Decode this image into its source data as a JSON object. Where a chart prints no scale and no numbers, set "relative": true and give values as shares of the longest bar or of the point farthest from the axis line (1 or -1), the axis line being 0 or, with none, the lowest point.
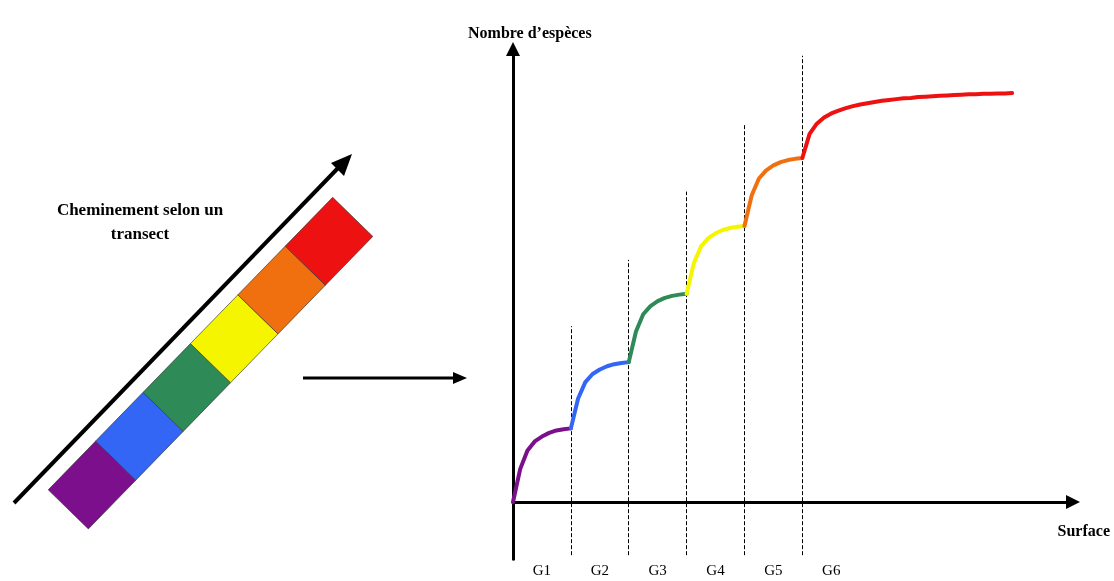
{
  "chart_data": {
    "type": "line",
    "relative": true,
    "ylabel": "Nombre d’espèces",
    "xlabel": "Surface",
    "categories": [
      null,
      null,
      null,
      null,
      "G1",
      null,
      null,
      null,
      null,
      null,
      null,
      null,
      "G2",
      null,
      null,
      null,
      null,
      null,
      null,
      null,
      "G3",
      null,
      null,
      null,
      null,
      null,
      null,
      null,
      "G4",
      null,
      null,
      null,
      null,
      null,
      null,
      null,
      "G5",
      null,
      null,
      null,
      null,
      null,
      null,
      null,
      "G6",
      null,
      null,
      null,
      null,
      null,
      null,
      null,
      null,
      null,
      null,
      null,
      null,
      null,
      null,
      null,
      null,
      null,
      null,
      null,
      null,
      null,
      null,
      null,
      null,
      null,
      null,
      null,
      null,
      null,
      null,
      null,
      null,
      null
    ],
    "marker": "none",
    "line_style": "solid",
    "annotations": [
      "Cheminement selon un transect"
    ],
    "series": [
      {
        "color": "#7b0f8c",
        "values": [
          0,
          0.081,
          0.126,
          0.148,
          0.16,
          0.169,
          0.175,
          0.178,
          0.18,
          null,
          null,
          null,
          null,
          null,
          null,
          null,
          null,
          null,
          null,
          null,
          null,
          null,
          null,
          null,
          null,
          null,
          null,
          null,
          null,
          null,
          null,
          null,
          null,
          null,
          null,
          null,
          null,
          null,
          null,
          null,
          null,
          null,
          null,
          null,
          null,
          null,
          null,
          null,
          null,
          null,
          null,
          null,
          null,
          null,
          null,
          null,
          null,
          null,
          null,
          null,
          null,
          null,
          null,
          null,
          null,
          null,
          null,
          null,
          null,
          null,
          null,
          null,
          null,
          null,
          null,
          null,
          null,
          null
        ]
      },
      {
        "color": "#3366f5",
        "values": [
          null,
          null,
          null,
          null,
          null,
          null,
          null,
          null,
          0.18,
          0.253,
          0.293,
          0.313,
          0.324,
          0.332,
          0.337,
          0.34,
          0.342,
          null,
          null,
          null,
          null,
          null,
          null,
          null,
          null,
          null,
          null,
          null,
          null,
          null,
          null,
          null,
          null,
          null,
          null,
          null,
          null,
          null,
          null,
          null,
          null,
          null,
          null,
          null,
          null,
          null,
          null,
          null,
          null,
          null,
          null,
          null,
          null,
          null,
          null,
          null,
          null,
          null,
          null,
          null,
          null,
          null,
          null,
          null,
          null,
          null,
          null,
          null,
          null,
          null,
          null,
          null,
          null,
          null,
          null,
          null,
          null,
          null
        ]
      },
      {
        "color": "#2e8b57",
        "values": [
          null,
          null,
          null,
          null,
          null,
          null,
          null,
          null,
          null,
          null,
          null,
          null,
          null,
          null,
          null,
          null,
          0.342,
          0.417,
          0.459,
          0.479,
          0.491,
          0.499,
          0.504,
          0.507,
          0.509,
          null,
          null,
          null,
          null,
          null,
          null,
          null,
          null,
          null,
          null,
          null,
          null,
          null,
          null,
          null,
          null,
          null,
          null,
          null,
          null,
          null,
          null,
          null,
          null,
          null,
          null,
          null,
          null,
          null,
          null,
          null,
          null,
          null,
          null,
          null,
          null,
          null,
          null,
          null,
          null,
          null,
          null,
          null,
          null,
          null,
          null,
          null,
          null,
          null,
          null,
          null,
          null,
          null
        ]
      },
      {
        "color": "#f5f500",
        "values": [
          null,
          null,
          null,
          null,
          null,
          null,
          null,
          null,
          null,
          null,
          null,
          null,
          null,
          null,
          null,
          null,
          null,
          null,
          null,
          null,
          null,
          null,
          null,
          null,
          0.509,
          0.584,
          0.625,
          0.645,
          0.657,
          0.665,
          0.67,
          0.673,
          0.675,
          null,
          null,
          null,
          null,
          null,
          null,
          null,
          null,
          null,
          null,
          null,
          null,
          null,
          null,
          null,
          null,
          null,
          null,
          null,
          null,
          null,
          null,
          null,
          null,
          null,
          null,
          null,
          null,
          null,
          null,
          null,
          null,
          null,
          null,
          null,
          null,
          null,
          null,
          null,
          null,
          null,
          null,
          null,
          null,
          null
        ]
      },
      {
        "color": "#f07010",
        "values": [
          null,
          null,
          null,
          null,
          null,
          null,
          null,
          null,
          null,
          null,
          null,
          null,
          null,
          null,
          null,
          null,
          null,
          null,
          null,
          null,
          null,
          null,
          null,
          null,
          null,
          null,
          null,
          null,
          null,
          null,
          null,
          null,
          0.675,
          0.75,
          0.791,
          0.811,
          0.823,
          0.831,
          0.836,
          0.839,
          0.841,
          null,
          null,
          null,
          null,
          null,
          null,
          null,
          null,
          null,
          null,
          null,
          null,
          null,
          null,
          null,
          null,
          null,
          null,
          null,
          null,
          null,
          null,
          null,
          null,
          null,
          null,
          null,
          null,
          null,
          null,
          null,
          null,
          null,
          null,
          null,
          null,
          null
        ]
      },
      {
        "color": "#ee1111",
        "values": [
          null,
          null,
          null,
          null,
          null,
          null,
          null,
          null,
          null,
          null,
          null,
          null,
          null,
          null,
          null,
          null,
          null,
          null,
          null,
          null,
          null,
          null,
          null,
          null,
          null,
          null,
          null,
          null,
          null,
          null,
          null,
          null,
          null,
          null,
          null,
          null,
          null,
          null,
          null,
          null,
          0.841,
          0.9,
          0.925,
          0.94,
          0.95,
          0.957,
          0.963,
          0.968,
          0.972,
          0.975,
          0.978,
          0.981,
          0.983,
          0.985,
          0.987,
          0.988,
          0.99,
          0.991,
          0.992,
          0.993,
          0.994,
          0.995,
          0.996,
          0.997,
          0.997,
          0.998,
          0.998,
          0.999,
          0.999,
          1,
          null,
          null,
          null,
          null,
          null,
          null,
          null,
          null
        ]
      }
    ]
  }
}
